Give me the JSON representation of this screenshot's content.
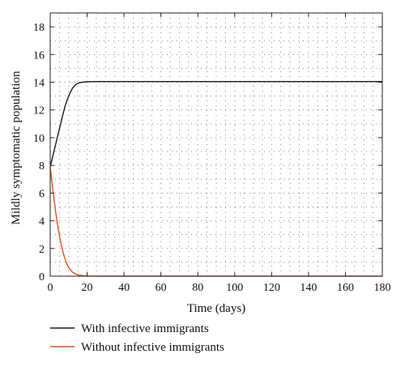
{
  "chart_data": {
    "type": "line",
    "title": "",
    "xlabel": "Time (days)",
    "ylabel": "Mildly symptomatic population",
    "xlim": [
      0,
      180
    ],
    "ylim": [
      0,
      19
    ],
    "x_ticks": [
      0,
      20,
      40,
      60,
      80,
      100,
      120,
      140,
      160,
      180
    ],
    "y_ticks": [
      0,
      2,
      4,
      6,
      8,
      10,
      12,
      14,
      16,
      18
    ],
    "grid": "dotted",
    "legend_position": "bottom-left, below the plot",
    "series": [
      {
        "name": "With infective immigrants",
        "color": "#1a1a1a",
        "x": [
          0,
          1,
          2,
          3,
          4,
          5,
          6,
          7,
          8,
          9,
          10,
          11,
          12,
          13,
          14,
          15,
          16,
          18,
          20,
          22,
          25,
          30,
          40,
          60,
          80,
          100,
          120,
          140,
          160,
          180
        ],
        "y": [
          7.9,
          8.45,
          9.0,
          9.55,
          10.1,
          10.65,
          11.2,
          11.75,
          12.25,
          12.65,
          13.0,
          13.3,
          13.55,
          13.72,
          13.84,
          13.92,
          13.97,
          14.01,
          14.03,
          14.04,
          14.05,
          14.05,
          14.05,
          14.05,
          14.05,
          14.05,
          14.05,
          14.05,
          14.05,
          14.05
        ]
      },
      {
        "name": "Without infective immigrants",
        "color": "#d9541e",
        "x": [
          0,
          1,
          2,
          3,
          4,
          5,
          6,
          7,
          8,
          9,
          10,
          12,
          14,
          16,
          18,
          20,
          22,
          25,
          30,
          40,
          60,
          80,
          100,
          120,
          140,
          160,
          180
        ],
        "y": [
          7.9,
          6.7,
          5.6,
          4.6,
          3.7,
          2.9,
          2.25,
          1.7,
          1.25,
          0.9,
          0.62,
          0.3,
          0.14,
          0.07,
          0.03,
          0.015,
          0.008,
          0.003,
          0.0,
          0.0,
          0.0,
          0.0,
          0.0,
          0.0,
          0.0,
          0.0,
          0.0
        ]
      }
    ]
  }
}
